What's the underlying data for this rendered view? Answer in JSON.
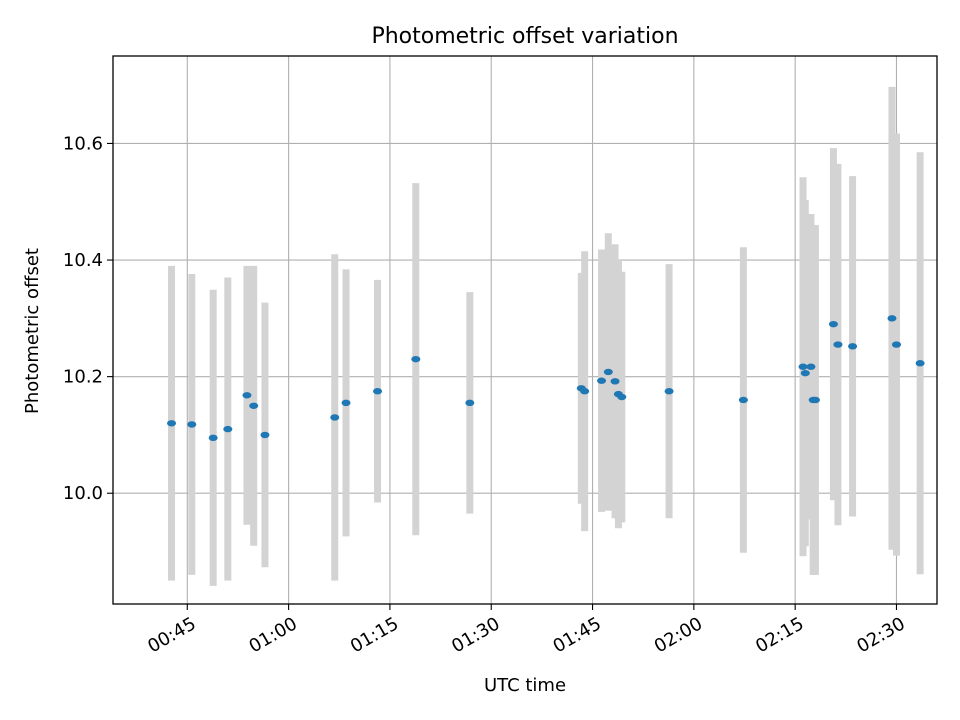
{
  "chart_data": {
    "type": "scatter",
    "title": "Photometric offset variation",
    "xlabel": "UTC time",
    "ylabel": "Photometric offset",
    "xlim": [
      "00:34",
      "02:36"
    ],
    "ylim": [
      9.81,
      10.75
    ],
    "x_ticks": [
      "00:45",
      "01:00",
      "01:15",
      "01:30",
      "01:45",
      "02:00",
      "02:15",
      "02:30"
    ],
    "y_ticks": [
      "10.0",
      "10.2",
      "10.4",
      "10.6"
    ],
    "grid": true,
    "errorbar_color": "#d3d3d3",
    "marker_color": "#1f77b4",
    "series": [
      {
        "points": [
          {
            "x": "00:42:40",
            "y": 10.12,
            "err": 0.27
          },
          {
            "x": "00:45:40",
            "y": 10.118,
            "err": 0.258
          },
          {
            "x": "00:48:50",
            "y": 10.095,
            "err": 0.254
          },
          {
            "x": "00:51:00",
            "y": 10.11,
            "err": 0.26
          },
          {
            "x": "00:53:50",
            "y": 10.168,
            "err": 0.222
          },
          {
            "x": "00:54:50",
            "y": 10.15,
            "err": 0.24
          },
          {
            "x": "00:56:30",
            "y": 10.1,
            "err": 0.227
          },
          {
            "x": "01:06:50",
            "y": 10.13,
            "err": 0.28
          },
          {
            "x": "01:08:30",
            "y": 10.155,
            "err": 0.229
          },
          {
            "x": "01:13:10",
            "y": 10.175,
            "err": 0.191
          },
          {
            "x": "01:18:50",
            "y": 10.23,
            "err": 0.302
          },
          {
            "x": "01:26:50",
            "y": 10.155,
            "err": 0.19
          },
          {
            "x": "01:43:20",
            "y": 10.18,
            "err": 0.198
          },
          {
            "x": "01:43:50",
            "y": 10.175,
            "err": 0.24
          },
          {
            "x": "01:46:20",
            "y": 10.193,
            "err": 0.225
          },
          {
            "x": "01:47:20",
            "y": 10.208,
            "err": 0.238
          },
          {
            "x": "01:48:20",
            "y": 10.192,
            "err": 0.235
          },
          {
            "x": "01:48:50",
            "y": 10.17,
            "err": 0.23
          },
          {
            "x": "01:49:20",
            "y": 10.165,
            "err": 0.215
          },
          {
            "x": "01:56:20",
            "y": 10.175,
            "err": 0.218
          },
          {
            "x": "02:07:20",
            "y": 10.16,
            "err": 0.262
          },
          {
            "x": "02:16:10",
            "y": 10.217,
            "err": 0.325
          },
          {
            "x": "02:16:30",
            "y": 10.206,
            "err": 0.297
          },
          {
            "x": "02:17:20",
            "y": 10.217,
            "err": 0.262
          },
          {
            "x": "02:17:40",
            "y": 10.16,
            "err": 0.3
          },
          {
            "x": "02:18:00",
            "y": 10.16,
            "err": 0.3
          },
          {
            "x": "02:20:40",
            "y": 10.29,
            "err": 0.302
          },
          {
            "x": "02:21:20",
            "y": 10.255,
            "err": 0.31
          },
          {
            "x": "02:23:30",
            "y": 10.252,
            "err": 0.292
          },
          {
            "x": "02:29:20",
            "y": 10.3,
            "err": 0.397
          },
          {
            "x": "02:30:00",
            "y": 10.255,
            "err": 0.362
          },
          {
            "x": "02:33:30",
            "y": 10.223,
            "err": 0.362
          }
        ]
      }
    ]
  }
}
